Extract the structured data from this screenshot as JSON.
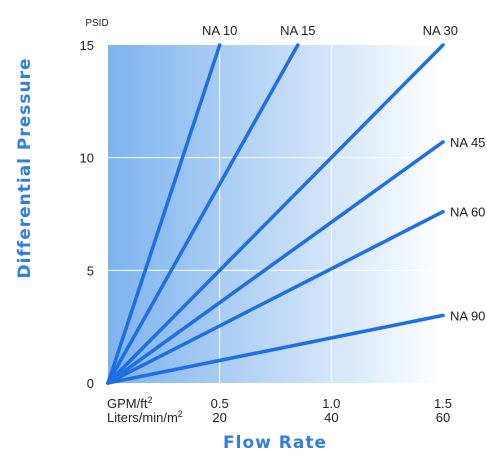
{
  "chart_data": {
    "type": "line",
    "xlabel": "Flow Rate",
    "ylabel": "Differential Pressure",
    "y_unit": "PSID",
    "x_unit_primary": "GPM/ft²",
    "x_unit_secondary": "Liters/min/m²",
    "xlim": [
      0,
      1.5
    ],
    "ylim": [
      0,
      15
    ],
    "x_ticks": [
      {
        "value": 0.5,
        "label": "0.5",
        "secondary_label": "20"
      },
      {
        "value": 1.0,
        "label": "1.0",
        "secondary_label": "40"
      },
      {
        "value": 1.5,
        "label": "1.5",
        "secondary_label": "60"
      }
    ],
    "y_ticks": [
      {
        "value": 0,
        "label": "0"
      },
      {
        "value": 5,
        "label": "5"
      },
      {
        "value": 10,
        "label": "10"
      },
      {
        "value": 15,
        "label": "15"
      }
    ],
    "grid": true,
    "series": [
      {
        "name": "NA 10",
        "x": [
          0,
          0.5
        ],
        "y": [
          0,
          15
        ]
      },
      {
        "name": "NA 15",
        "x": [
          0,
          0.85
        ],
        "y": [
          0,
          15
        ]
      },
      {
        "name": "NA 30",
        "x": [
          0,
          1.5
        ],
        "y": [
          0,
          15
        ]
      },
      {
        "name": "NA 45",
        "x": [
          0,
          1.5
        ],
        "y": [
          0,
          10.7
        ]
      },
      {
        "name": "NA 60",
        "x": [
          0,
          1.5
        ],
        "y": [
          0,
          7.6
        ]
      },
      {
        "name": "NA 90",
        "x": [
          0,
          1.5
        ],
        "y": [
          0,
          3.0
        ]
      }
    ],
    "colors": {
      "line": "#1e6ee8",
      "axis_title": "#2f7fe0",
      "background_left": "#7db3ee",
      "background_right": "#ffffff",
      "grid": "#ffffff"
    }
  }
}
